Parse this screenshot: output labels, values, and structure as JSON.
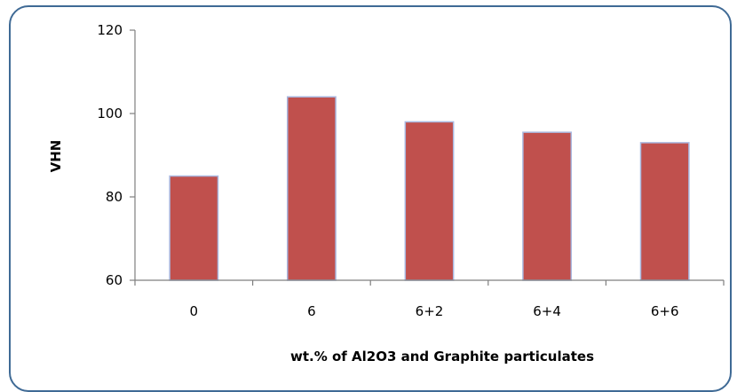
{
  "chart_data": {
    "type": "bar",
    "categories": [
      "0",
      "6",
      "6+2",
      "6+4",
      "6+6"
    ],
    "values": [
      85,
      104,
      98,
      95.5,
      93
    ],
    "title": "",
    "xlabel": "wt.% of Al2O3 and Graphite particulates",
    "ylabel": "VHN",
    "ylim": [
      60,
      120
    ],
    "yticks": [
      "60",
      "80",
      "100",
      "120"
    ],
    "grid": false,
    "legend": "none",
    "colors": {
      "bar_fill": "#c0504d",
      "bar_stroke": "#a9b8e0",
      "axis": "#7f7f7f",
      "frame_border": "#3f6a95"
    }
  }
}
